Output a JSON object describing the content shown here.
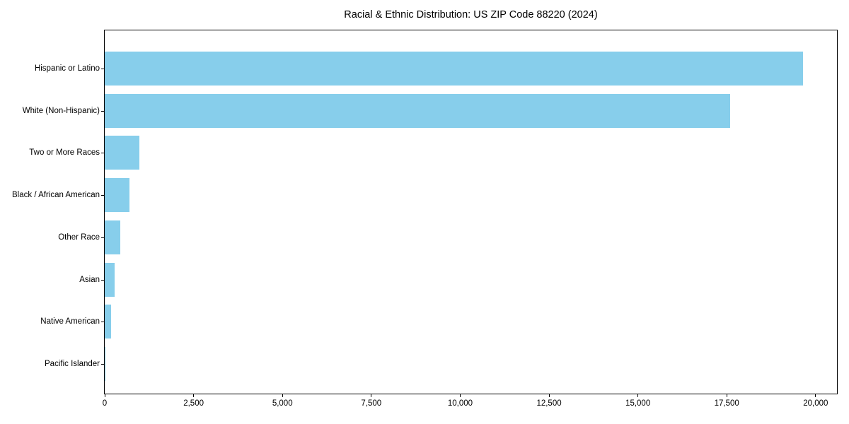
{
  "chart_data": {
    "type": "bar",
    "orientation": "horizontal",
    "title": "Racial & Ethnic Distribution: US ZIP Code 88220 (2024)",
    "categories": [
      "Hispanic or Latino",
      "White (Non-Hispanic)",
      "Two or More Races",
      "Black / African American",
      "Other Race",
      "Asian",
      "Native American",
      "Pacific Islander"
    ],
    "values": [
      19650,
      17600,
      975,
      700,
      440,
      280,
      170,
      10
    ],
    "xlabel": "",
    "ylabel": "",
    "xlim": [
      0,
      20600
    ],
    "x_ticks": [
      0,
      2500,
      5000,
      7500,
      10000,
      12500,
      15000,
      17500,
      20000
    ],
    "x_tick_labels": [
      "0",
      "2,500",
      "5,000",
      "7,500",
      "10,000",
      "12,500",
      "15,000",
      "17,500",
      "20,000"
    ],
    "bar_color": "#87CEEB",
    "axis_color": "#000000",
    "background_color": "#FFFFFF",
    "grid": false,
    "legend_position": "none"
  }
}
